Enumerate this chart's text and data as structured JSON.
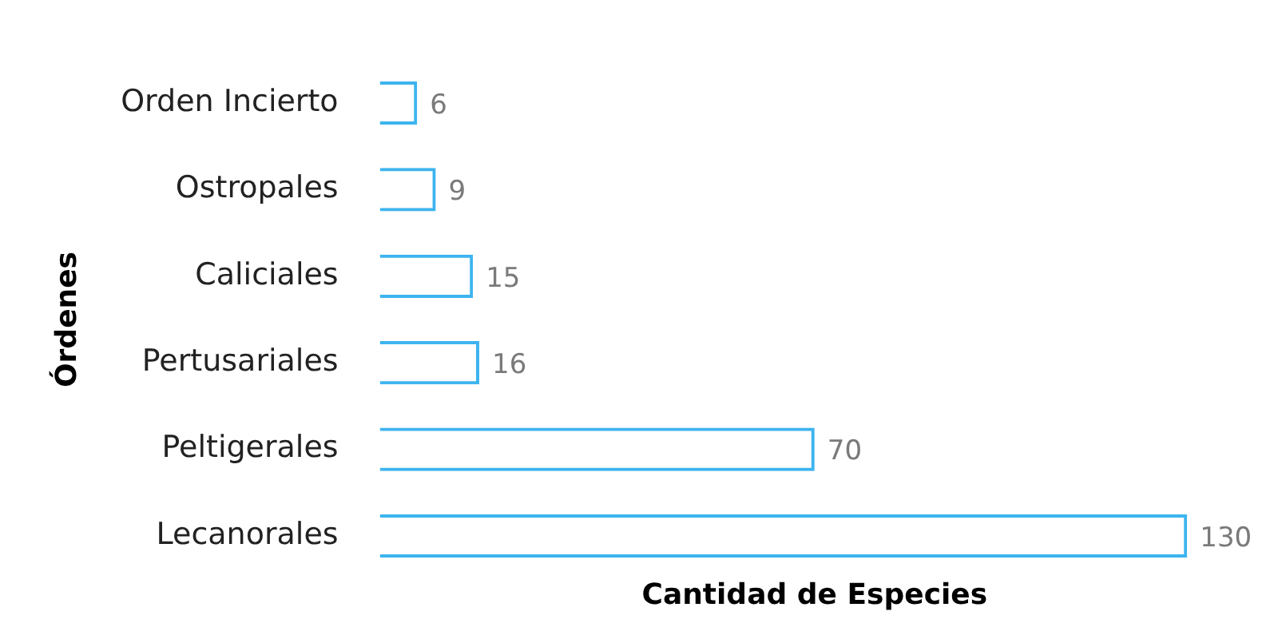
{
  "chart_data": {
    "type": "bar",
    "orientation": "horizontal",
    "xlabel": "Cantidad de Especies",
    "ylabel": "Órdenes",
    "categories": [
      "Orden Incierto",
      "Ostropales",
      "Caliciales",
      "Pertusariales",
      "Peltigerales",
      "Lecanorales"
    ],
    "values": [
      6,
      9,
      15,
      16,
      70,
      130
    ],
    "color": "#3db4ef",
    "data_labels": true,
    "grid": false,
    "legend": false
  }
}
